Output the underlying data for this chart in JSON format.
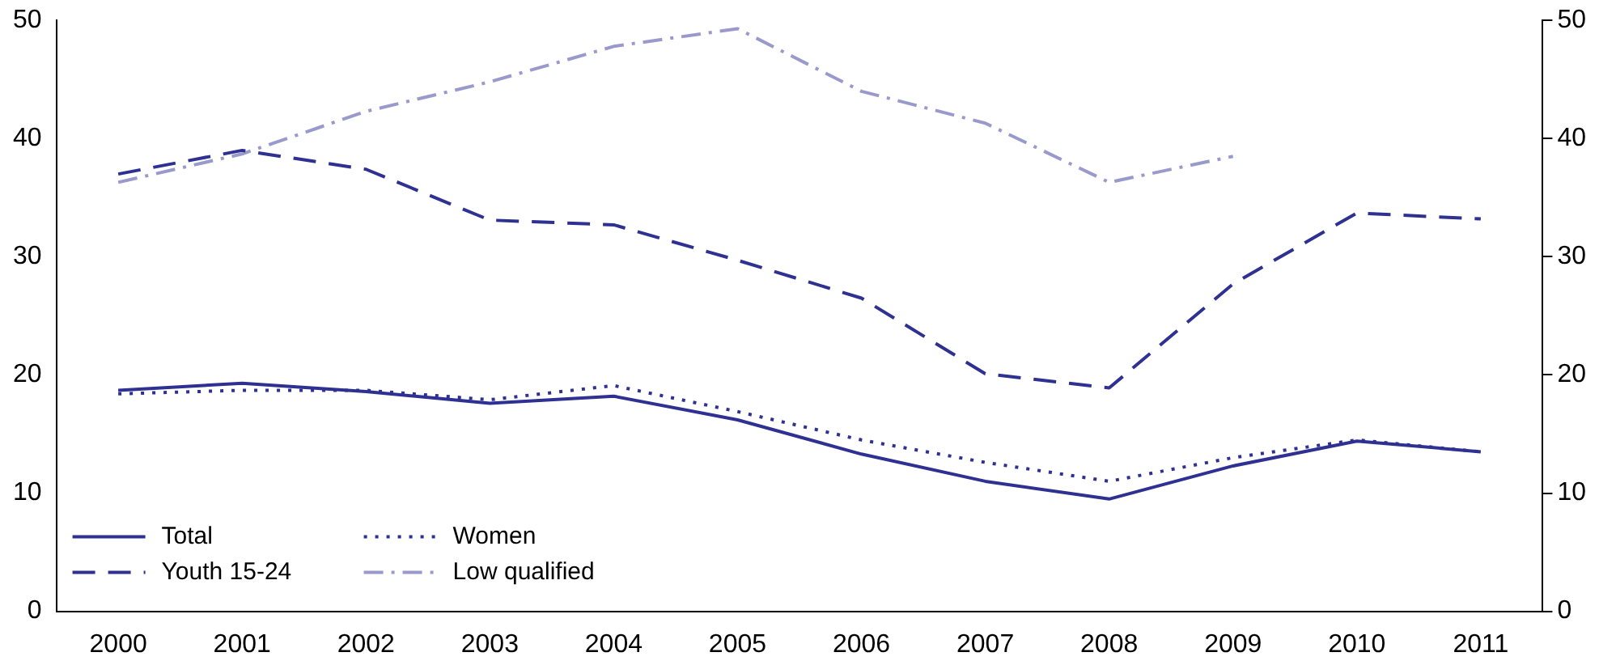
{
  "chart_data": {
    "type": "line",
    "categories": [
      "2000",
      "2001",
      "2002",
      "2003",
      "2004",
      "2005",
      "2006",
      "2007",
      "2008",
      "2009",
      "2010",
      "2011"
    ],
    "ylim": [
      0,
      50
    ],
    "yticks": [
      0,
      10,
      20,
      30,
      40,
      50
    ],
    "y2lim": [
      0,
      50
    ],
    "y2ticks": [
      0,
      10,
      20,
      30,
      40,
      50
    ],
    "grid": false,
    "legend": "bottom left",
    "marker": "none",
    "series": [
      {
        "name": "Total",
        "color": "#2e3192",
        "line_style": "solid",
        "values": [
          18.7,
          19.3,
          18.6,
          17.6,
          18.2,
          16.2,
          13.3,
          11.0,
          9.5,
          12.3,
          14.4,
          13.5
        ]
      },
      {
        "name": "Youth 15-24",
        "color": "#2e3192",
        "line_style": "dashed",
        "values": [
          37.0,
          39.0,
          37.4,
          33.1,
          32.7,
          29.7,
          26.5,
          20.1,
          18.9,
          27.7,
          33.7,
          33.2
        ]
      },
      {
        "name": "Women",
        "color": "#2e3192",
        "line_style": "dotted",
        "values": [
          18.4,
          18.7,
          18.7,
          17.9,
          19.1,
          16.9,
          14.5,
          12.6,
          11.0,
          13.0,
          14.5,
          13.5
        ]
      },
      {
        "name": "Low qualified",
        "color": "#9999cc",
        "line_style": "dashdot",
        "values": [
          36.3,
          38.7,
          42.3,
          44.8,
          47.8,
          49.3,
          44.0,
          41.3,
          36.3,
          38.5,
          null,
          null
        ]
      }
    ]
  }
}
